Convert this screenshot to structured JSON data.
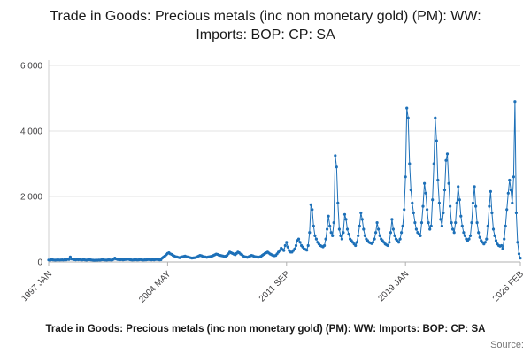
{
  "title": "Trade in Goods: Precious metals (inc non monetary gold) (PM): WW: Imports: BOP: CP: SA",
  "footer": {
    "caption": "Trade in Goods: Precious metals (inc non monetary gold) (PM): WW: Imports: BOP: CP: SA",
    "source_label": "Source:"
  },
  "chart_data": {
    "type": "line",
    "title": "Trade in Goods: Precious metals (inc non monetary gold) (PM): WW: Imports: BOP: CP: SA",
    "frequency": "monthly",
    "x_start": "1997 JAN",
    "x_end": "2026 FEB",
    "x_tick_labels": [
      "1997 JAN",
      "2004 MAY",
      "2011 SEP",
      "2019 JAN",
      "2026 FEB"
    ],
    "x_tick_month_index": [
      0,
      88,
      176,
      264,
      349
    ],
    "y_ticks": [
      0,
      2000,
      4000,
      6000
    ],
    "y_tick_labels": [
      "0",
      "2 000",
      "4 000",
      "6 000"
    ],
    "ylim": [
      0,
      6000
    ],
    "line_color": "#1d70b8",
    "marker": "circle",
    "grid_color": "#e3e3e3",
    "axis_color": "#b0b0b0",
    "tick_text_color": "#414042",
    "legend": "none",
    "values": [
      60,
      55,
      70,
      65,
      60,
      58,
      62,
      66,
      59,
      61,
      64,
      60,
      70,
      65,
      80,
      75,
      150,
      90,
      85,
      70,
      65,
      72,
      68,
      75,
      60,
      65,
      70,
      62,
      58,
      64,
      70,
      66,
      60,
      55,
      52,
      60,
      55,
      60,
      58,
      65,
      70,
      62,
      60,
      58,
      64,
      66,
      60,
      62,
      80,
      120,
      90,
      75,
      70,
      68,
      72,
      65,
      70,
      75,
      80,
      85,
      70,
      65,
      60,
      66,
      70,
      64,
      62,
      68,
      72,
      66,
      60,
      64,
      65,
      70,
      75,
      68,
      64,
      70,
      66,
      72,
      78,
      70,
      65,
      68,
      120,
      150,
      180,
      220,
      260,
      280,
      250,
      230,
      200,
      180,
      160,
      150,
      140,
      130,
      150,
      160,
      170,
      180,
      160,
      150,
      140,
      130,
      120,
      125,
      130,
      140,
      160,
      180,
      200,
      190,
      170,
      160,
      150,
      140,
      150,
      160,
      170,
      180,
      200,
      220,
      240,
      230,
      210,
      200,
      190,
      180,
      170,
      175,
      200,
      250,
      300,
      280,
      260,
      240,
      220,
      260,
      300,
      280,
      240,
      220,
      180,
      160,
      150,
      140,
      160,
      180,
      200,
      190,
      170,
      160,
      150,
      140,
      150,
      170,
      200,
      230,
      260,
      280,
      300,
      270,
      240,
      220,
      200,
      190,
      200,
      250,
      300,
      350,
      420,
      380,
      350,
      500,
      600,
      450,
      350,
      300,
      300,
      350,
      400,
      500,
      650,
      700,
      600,
      500,
      450,
      400,
      380,
      360,
      500,
      900,
      1750,
      1600,
      1100,
      800,
      700,
      600,
      550,
      500,
      480,
      460,
      500,
      700,
      1000,
      1400,
      1100,
      900,
      800,
      1200,
      3250,
      2900,
      1800,
      1000,
      800,
      700,
      900,
      1450,
      1300,
      1000,
      850,
      700,
      650,
      600,
      550,
      500,
      600,
      800,
      1100,
      1500,
      1300,
      1000,
      800,
      700,
      650,
      600,
      580,
      560,
      600,
      700,
      900,
      1200,
      1000,
      800,
      700,
      650,
      600,
      550,
      520,
      500,
      600,
      900,
      1300,
      1000,
      800,
      700,
      650,
      600,
      700,
      900,
      1100,
      1600,
      2600,
      4700,
      4400,
      3000,
      2200,
      1800,
      1500,
      1200,
      1000,
      900,
      850,
      800,
      1200,
      1700,
      2400,
      2100,
      1600,
      1200,
      1000,
      1100,
      1900,
      3000,
      4400,
      3700,
      2500,
      1800,
      1300,
      1100,
      1500,
      2200,
      3100,
      3300,
      2400,
      1700,
      1200,
      1000,
      900,
      1200,
      1800,
      2300,
      1900,
      1400,
      1100,
      900,
      800,
      700,
      650,
      700,
      800,
      1200,
      1800,
      2300,
      1700,
      1200,
      900,
      750,
      650,
      600,
      550,
      600,
      700,
      1100,
      1700,
      2150,
      1500,
      1000,
      800,
      650,
      550,
      500,
      480,
      500,
      400,
      700,
      1100,
      1600,
      2100,
      2500,
      2200,
      1800,
      2600,
      4900,
      1500,
      600,
      250,
      120
    ]
  }
}
